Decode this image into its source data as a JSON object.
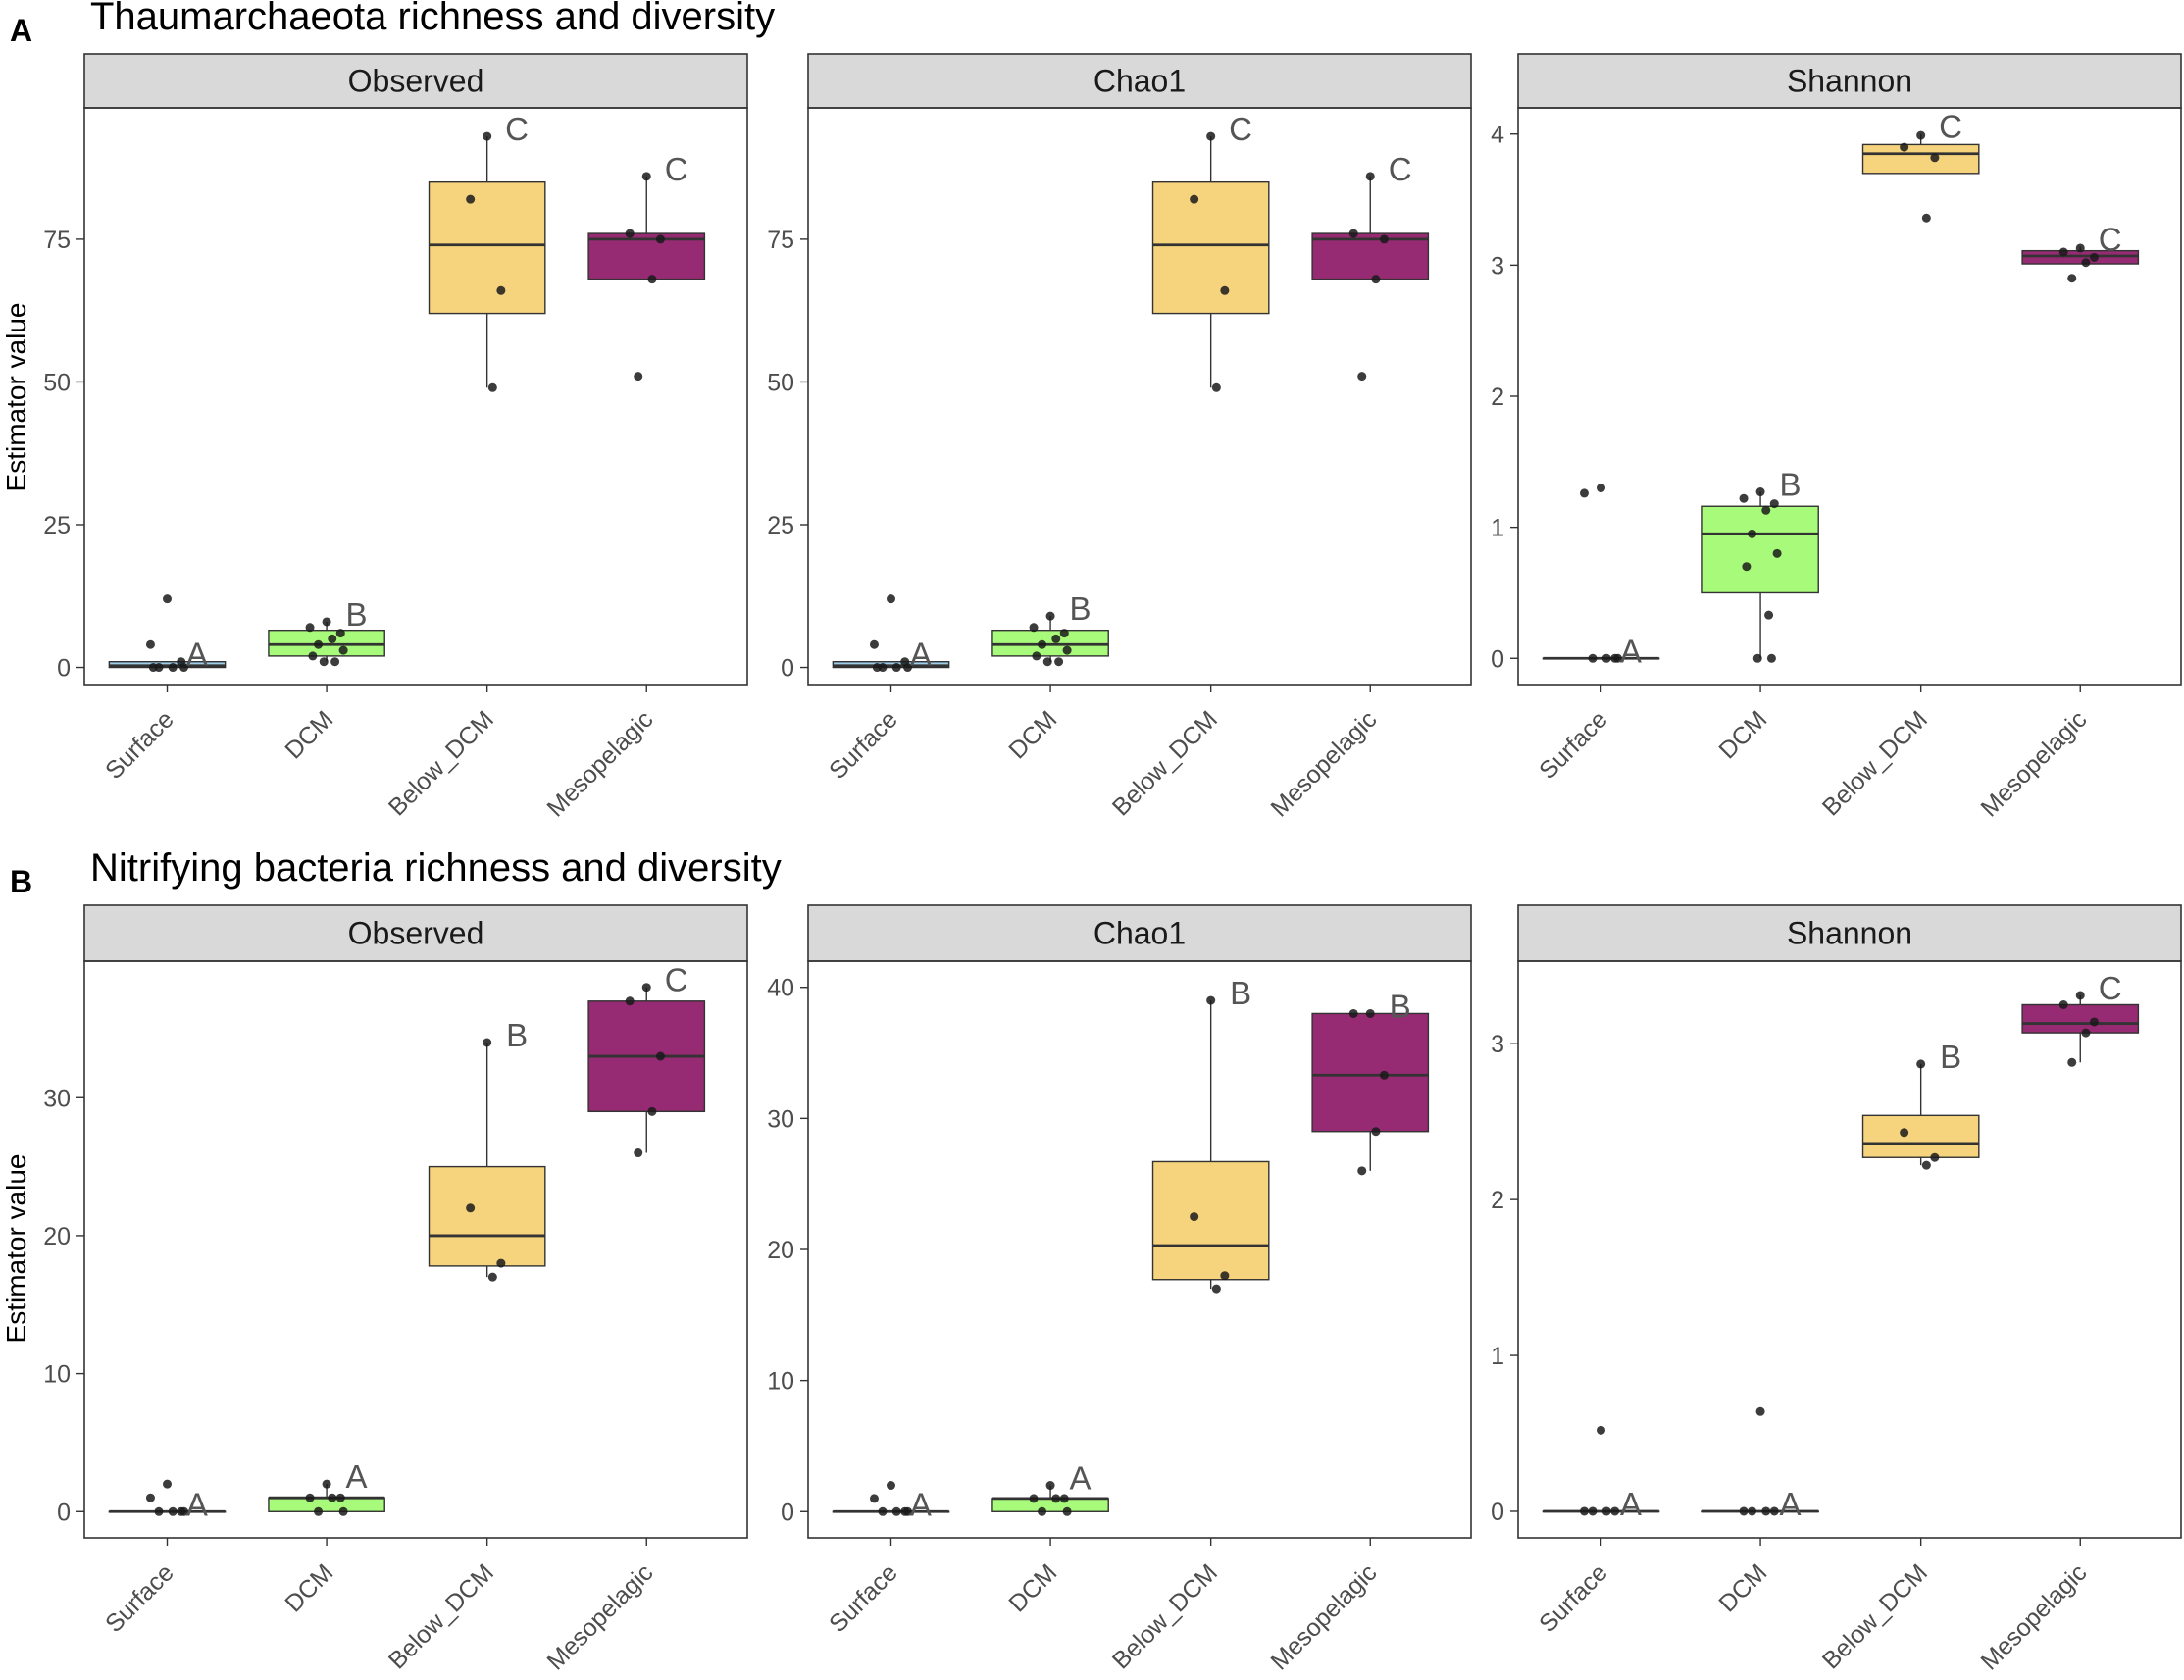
{
  "figure": {
    "categories": [
      "Surface",
      "DCM",
      "Below_DCM",
      "Mesopelagic"
    ],
    "y_axis_label": "Estimator value",
    "colors": {
      "Surface": "#9ECFEA",
      "DCM": "#A8FA7A",
      "Below_DCM": "#F6D47E",
      "Mesopelagic": "#962B73",
      "strip": "#D9D9D9",
      "point": "#1A1A1A",
      "letter": "#555555"
    }
  },
  "chart_data": [
    {
      "panel": "A",
      "row_title": "Thaumarchaeota richness and diversity",
      "facet": "Observed",
      "type": "boxplot",
      "ylabel": "Estimator value",
      "ylim": [
        -3,
        98
      ],
      "ticks": [
        0,
        25,
        50,
        75
      ],
      "boxes": [
        {
          "category": "Surface",
          "q1": 0,
          "median": 0.3,
          "q3": 1,
          "min": 0,
          "max": 1,
          "points": [
            12,
            4,
            1,
            0,
            0,
            0,
            0
          ],
          "letter": "A"
        },
        {
          "category": "DCM",
          "q1": 2,
          "median": 4,
          "q3": 6.5,
          "min": 1,
          "max": 8,
          "points": [
            8,
            7,
            6,
            5,
            4,
            3,
            2,
            1,
            1
          ],
          "letter": "B"
        },
        {
          "category": "Below_DCM",
          "q1": 62,
          "median": 74,
          "q3": 85,
          "min": 49,
          "max": 93,
          "points": [
            93,
            82,
            66,
            49
          ],
          "letter": "C"
        },
        {
          "category": "Mesopelagic",
          "q1": 68,
          "median": 75,
          "q3": 76,
          "min": 68,
          "max": 86,
          "points": [
            86,
            76,
            75,
            68,
            51
          ],
          "letter": "C"
        }
      ]
    },
    {
      "panel": "A",
      "facet": "Chao1",
      "type": "boxplot",
      "ylim": [
        -3,
        98
      ],
      "ticks": [
        0,
        25,
        50,
        75
      ],
      "boxes": [
        {
          "category": "Surface",
          "q1": 0,
          "median": 0.3,
          "q3": 1,
          "min": 0,
          "max": 1,
          "points": [
            12,
            4,
            1,
            0,
            0,
            0,
            0
          ],
          "letter": "A"
        },
        {
          "category": "DCM",
          "q1": 2,
          "median": 4,
          "q3": 6.5,
          "min": 1,
          "max": 9,
          "points": [
            9,
            7,
            6,
            5,
            4,
            3,
            2,
            1,
            1
          ],
          "letter": "B"
        },
        {
          "category": "Below_DCM",
          "q1": 62,
          "median": 74,
          "q3": 85,
          "min": 49,
          "max": 93,
          "points": [
            93,
            82,
            66,
            49
          ],
          "letter": "C"
        },
        {
          "category": "Mesopelagic",
          "q1": 68,
          "median": 75,
          "q3": 76,
          "min": 68,
          "max": 86,
          "points": [
            86,
            76,
            75,
            68,
            51
          ],
          "letter": "C"
        }
      ]
    },
    {
      "panel": "A",
      "facet": "Shannon",
      "type": "boxplot",
      "ylim": [
        -0.2,
        4.2
      ],
      "ticks": [
        0,
        1,
        2,
        3,
        4
      ],
      "boxes": [
        {
          "category": "Surface",
          "q1": 0,
          "median": 0,
          "q3": 0,
          "min": 0,
          "max": 0,
          "points": [
            1.3,
            1.26,
            0,
            0,
            0,
            0
          ],
          "letter": "A"
        },
        {
          "category": "DCM",
          "q1": 0.5,
          "median": 0.95,
          "q3": 1.16,
          "min": 0,
          "max": 1.27,
          "points": [
            1.27,
            1.22,
            1.18,
            1.13,
            0.95,
            0.8,
            0.7,
            0.33,
            0,
            0
          ],
          "letter": "B"
        },
        {
          "category": "Below_DCM",
          "q1": 3.7,
          "median": 3.85,
          "q3": 3.92,
          "min": 3.7,
          "max": 4.0,
          "points": [
            3.99,
            3.9,
            3.82,
            3.36
          ],
          "letter": "C"
        },
        {
          "category": "Mesopelagic",
          "q1": 3.01,
          "median": 3.07,
          "q3": 3.11,
          "min": 3.01,
          "max": 3.14,
          "points": [
            3.13,
            3.1,
            3.06,
            3.02,
            2.9
          ],
          "letter": "C"
        }
      ]
    },
    {
      "panel": "B",
      "row_title": "Nitrifying bacteria richness and diversity",
      "facet": "Observed",
      "type": "boxplot",
      "ylabel": "Estimator value",
      "ylim": [
        -1.9,
        39.9
      ],
      "ticks": [
        0,
        10,
        20,
        30
      ],
      "boxes": [
        {
          "category": "Surface",
          "q1": 0,
          "median": 0,
          "q3": 0,
          "min": 0,
          "max": 0,
          "points": [
            2,
            1,
            0,
            0,
            0,
            0
          ],
          "letter": "A"
        },
        {
          "category": "DCM",
          "q1": 0,
          "median": 1,
          "q3": 1,
          "min": 0,
          "max": 2,
          "points": [
            2,
            1,
            1,
            1,
            0,
            0
          ],
          "letter": "A"
        },
        {
          "category": "Below_DCM",
          "q1": 17.8,
          "median": 20,
          "q3": 25,
          "min": 17,
          "max": 34,
          "points": [
            34,
            22,
            18,
            17
          ],
          "letter": "B"
        },
        {
          "category": "Mesopelagic",
          "q1": 29,
          "median": 33,
          "q3": 37,
          "min": 26,
          "max": 38,
          "points": [
            38,
            37,
            33,
            29,
            26
          ],
          "letter": "C"
        }
      ]
    },
    {
      "panel": "B",
      "facet": "Chao1",
      "type": "boxplot",
      "ylim": [
        -2,
        42
      ],
      "ticks": [
        0,
        10,
        20,
        30,
        40
      ],
      "boxes": [
        {
          "category": "Surface",
          "q1": 0,
          "median": 0,
          "q3": 0,
          "min": 0,
          "max": 0,
          "points": [
            2,
            1,
            0,
            0,
            0,
            0
          ],
          "letter": "A"
        },
        {
          "category": "DCM",
          "q1": 0,
          "median": 1,
          "q3": 1,
          "min": 0,
          "max": 2,
          "points": [
            2,
            1,
            1,
            1,
            0,
            0
          ],
          "letter": "A"
        },
        {
          "category": "Below_DCM",
          "q1": 17.7,
          "median": 20.3,
          "q3": 26.7,
          "min": 17,
          "max": 39,
          "points": [
            39,
            22.5,
            18,
            17
          ],
          "letter": "B"
        },
        {
          "category": "Mesopelagic",
          "q1": 29,
          "median": 33.3,
          "q3": 38,
          "min": 26,
          "max": 38,
          "points": [
            38,
            38,
            33.3,
            29,
            26
          ],
          "letter": "B"
        }
      ]
    },
    {
      "panel": "B",
      "facet": "Shannon",
      "type": "boxplot",
      "ylim": [
        -0.17,
        3.53
      ],
      "ticks": [
        0,
        1,
        2,
        3
      ],
      "boxes": [
        {
          "category": "Surface",
          "q1": 0,
          "median": 0,
          "q3": 0,
          "min": 0,
          "max": 0,
          "points": [
            0.52,
            0,
            0,
            0,
            0
          ],
          "letter": "A"
        },
        {
          "category": "DCM",
          "q1": 0,
          "median": 0,
          "q3": 0,
          "min": 0,
          "max": 0,
          "points": [
            0.64,
            0,
            0,
            0,
            0
          ],
          "letter": "A"
        },
        {
          "category": "Below_DCM",
          "q1": 2.27,
          "median": 2.36,
          "q3": 2.54,
          "min": 2.22,
          "max": 2.87,
          "points": [
            2.87,
            2.43,
            2.27,
            2.22
          ],
          "letter": "B"
        },
        {
          "category": "Mesopelagic",
          "q1": 3.07,
          "median": 3.13,
          "q3": 3.25,
          "min": 2.88,
          "max": 3.31,
          "points": [
            3.31,
            3.25,
            3.14,
            3.07,
            2.88
          ],
          "letter": "C"
        }
      ]
    }
  ]
}
